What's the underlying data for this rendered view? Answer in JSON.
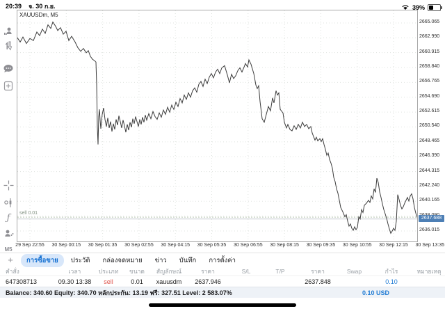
{
  "status_bar": {
    "time": "20:39",
    "date": "จ. 30 ก.ย.",
    "battery_percent": "39%"
  },
  "sidebar": {
    "timeframe_label": "M5",
    "icons": [
      "account-icon",
      "buy-sell-arrows-icon",
      "chat-icon",
      "new-order-icon",
      "crosshair-icon",
      "objects-icon",
      "indicators-icon",
      "trade-panel-icon"
    ]
  },
  "chart_data": {
    "type": "line",
    "title": "XAUUSDm, M5",
    "symbol_label": "XAUUSDm, M5",
    "line_color": "#3c3c3c",
    "grid_color": "#dfe3df",
    "y_range": [
      2634.56,
      2666.81
    ],
    "y_ticks": [
      "2665.065",
      "2662.990",
      "2660.915",
      "2658.840",
      "2656.765",
      "2654.690",
      "2652.615",
      "2650.540",
      "2648.465",
      "2646.390",
      "2644.315",
      "2642.240",
      "2640.165",
      "2638.090",
      "2636.015"
    ],
    "x_ticks": [
      "29 Sep 22:55",
      "30 Sep 00:15",
      "30 Sep 01:35",
      "30 Sep 02:55",
      "30 Sep 04:15",
      "30 Sep 05:35",
      "30 Sep 06:55",
      "30 Sep 08:15",
      "30 Sep 09:35",
      "30 Sep 10:55",
      "30 Sep 12:15",
      "30 Sep 13:35"
    ],
    "x_grid_start": 18,
    "x_grid_step": 52.3,
    "current_price": 2637.688,
    "current_price_label": "2637.688",
    "current_price_color": "#4d7fb5",
    "position_line": {
      "label": "sell 0.01",
      "price": 2637.946,
      "color": "#b9c6b4"
    },
    "points": [
      [
        0,
        2663.0
      ],
      [
        4,
        2662.4
      ],
      [
        8,
        2663.1
      ],
      [
        13,
        2662.2
      ],
      [
        18,
        2662.9
      ],
      [
        23,
        2662.6
      ],
      [
        28,
        2663.8
      ],
      [
        32,
        2663.3
      ],
      [
        36,
        2664.2
      ],
      [
        40,
        2663.6
      ],
      [
        44,
        2664.8
      ],
      [
        48,
        2664.3
      ],
      [
        51,
        2665.2
      ],
      [
        55,
        2664.6
      ],
      [
        58,
        2664.0
      ],
      [
        62,
        2664.4
      ],
      [
        66,
        2663.5
      ],
      [
        70,
        2663.9
      ],
      [
        74,
        2662.6
      ],
      [
        78,
        2663.2
      ],
      [
        83,
        2662.4
      ],
      [
        87,
        2661.6
      ],
      [
        91,
        2661.1
      ],
      [
        95,
        2661.5
      ],
      [
        99,
        2660.9
      ],
      [
        102,
        2661.2
      ],
      [
        105,
        2660.4
      ],
      [
        108,
        2660.0
      ],
      [
        111,
        2659.8
      ],
      [
        113,
        2659.6
      ],
      [
        114,
        2656.5
      ],
      [
        115,
        2650.5
      ],
      [
        116,
        2648.1
      ],
      [
        117,
        2652.0
      ],
      [
        118,
        2653.0
      ],
      [
        119,
        2651.5
      ],
      [
        120,
        2650.3
      ],
      [
        122,
        2652.3
      ],
      [
        124,
        2653.2
      ],
      [
        126,
        2651.6
      ],
      [
        128,
        2650.6
      ],
      [
        130,
        2651.8
      ],
      [
        132,
        2650.4
      ],
      [
        134,
        2651.3
      ],
      [
        136,
        2649.9
      ],
      [
        138,
        2651.0
      ],
      [
        140,
        2650.2
      ],
      [
        142,
        2651.6
      ],
      [
        144,
        2650.8
      ],
      [
        146,
        2652.1
      ],
      [
        148,
        2651.3
      ],
      [
        150,
        2650.4
      ],
      [
        152,
        2651.5
      ],
      [
        154,
        2650.7
      ],
      [
        156,
        2649.8
      ],
      [
        158,
        2650.9
      ],
      [
        160,
        2650.1
      ],
      [
        162,
        2651.2
      ],
      [
        164,
        2650.5
      ],
      [
        166,
        2651.7
      ],
      [
        168,
        2651.0
      ],
      [
        170,
        2652.0
      ],
      [
        172,
        2651.3
      ],
      [
        174,
        2650.6
      ],
      [
        176,
        2651.6
      ],
      [
        178,
        2650.9
      ],
      [
        180,
        2651.9
      ],
      [
        182,
        2651.2
      ],
      [
        184,
        2652.2
      ],
      [
        186,
        2651.5
      ],
      [
        189,
        2652.4
      ],
      [
        192,
        2651.7
      ],
      [
        195,
        2652.7
      ],
      [
        198,
        2652.0
      ],
      [
        201,
        2651.6
      ],
      [
        204,
        2652.5
      ],
      [
        207,
        2651.9
      ],
      [
        210,
        2652.9
      ],
      [
        213,
        2652.3
      ],
      [
        216,
        2653.3
      ],
      [
        219,
        2652.6
      ],
      [
        222,
        2653.6
      ],
      [
        225,
        2653.0
      ],
      [
        228,
        2654.0
      ],
      [
        231,
        2653.4
      ],
      [
        234,
        2654.5
      ],
      [
        237,
        2653.9
      ],
      [
        240,
        2655.0
      ],
      [
        243,
        2654.4
      ],
      [
        246,
        2655.3
      ],
      [
        249,
        2654.7
      ],
      [
        252,
        2655.6
      ],
      [
        255,
        2656.0
      ],
      [
        258,
        2655.4
      ],
      [
        261,
        2656.5
      ],
      [
        264,
        2656.9
      ],
      [
        267,
        2656.2
      ],
      [
        270,
        2657.2
      ],
      [
        273,
        2656.6
      ],
      [
        276,
        2657.5
      ],
      [
        279,
        2658.0
      ],
      [
        282,
        2657.4
      ],
      [
        285,
        2658.2
      ],
      [
        288,
        2658.6
      ],
      [
        291,
        2658.0
      ],
      [
        294,
        2658.8
      ],
      [
        298,
        2659.1
      ],
      [
        302,
        2657.8
      ],
      [
        305,
        2656.7
      ],
      [
        308,
        2657.9
      ],
      [
        311,
        2657.3
      ],
      [
        314,
        2657.7
      ],
      [
        317,
        2658.4
      ],
      [
        320,
        2658.8
      ],
      [
        323,
        2658.2
      ],
      [
        326,
        2658.9
      ],
      [
        328,
        2659.4
      ],
      [
        331,
        2658.9
      ],
      [
        333,
        2659.9
      ],
      [
        336,
        2659.3
      ],
      [
        340,
        2658.0
      ],
      [
        343,
        2656.4
      ],
      [
        345,
        2655.9
      ],
      [
        347,
        2656.3
      ],
      [
        349,
        2654.1
      ],
      [
        352,
        2651.7
      ],
      [
        355,
        2651.2
      ],
      [
        358,
        2652.3
      ],
      [
        361,
        2653.4
      ],
      [
        364,
        2652.8
      ],
      [
        367,
        2654.6
      ],
      [
        369,
        2653.9
      ],
      [
        372,
        2655.6
      ],
      [
        374,
        2655.0
      ],
      [
        376,
        2655.3
      ],
      [
        378,
        2653.0
      ],
      [
        382,
        2652.5
      ],
      [
        384,
        2651.2
      ],
      [
        387,
        2650.4
      ],
      [
        389,
        2650.9
      ],
      [
        392,
        2650.2
      ],
      [
        395,
        2650.0
      ],
      [
        398,
        2650.7
      ],
      [
        401,
        2650.2
      ],
      [
        404,
        2650.9
      ],
      [
        407,
        2650.4
      ],
      [
        410,
        2651.2
      ],
      [
        413,
        2650.6
      ],
      [
        416,
        2650.9
      ],
      [
        419,
        2650.3
      ],
      [
        422,
        2650.6
      ],
      [
        424,
        2649.7
      ],
      [
        426,
        2649.2
      ],
      [
        428,
        2648.7
      ],
      [
        430,
        2649.1
      ],
      [
        432,
        2648.6
      ],
      [
        435,
        2648.9
      ],
      [
        437,
        2648.5
      ],
      [
        439,
        2648.9
      ],
      [
        441,
        2648.1
      ],
      [
        443,
        2647.4
      ],
      [
        445,
        2646.6
      ],
      [
        447,
        2646.9
      ],
      [
        449,
        2646.0
      ],
      [
        451,
        2645.5
      ],
      [
        453,
        2644.8
      ],
      [
        455,
        2643.5
      ],
      [
        457,
        2642.9
      ],
      [
        459,
        2641.9
      ],
      [
        461,
        2641.3
      ],
      [
        463,
        2640.3
      ],
      [
        465,
        2639.3
      ],
      [
        468,
        2638.7
      ],
      [
        471,
        2638.0
      ],
      [
        473,
        2638.3
      ],
      [
        475,
        2637.4
      ],
      [
        477,
        2636.7
      ],
      [
        479,
        2637.0
      ],
      [
        481,
        2636.4
      ],
      [
        483,
        2636.1
      ],
      [
        485,
        2636.6
      ],
      [
        487,
        2636.2
      ],
      [
        489,
        2636.5
      ],
      [
        491,
        2638.0
      ],
      [
        493,
        2637.7
      ],
      [
        495,
        2639.0
      ],
      [
        497,
        2638.6
      ],
      [
        499,
        2639.6
      ],
      [
        502,
        2639.9
      ],
      [
        505,
        2640.3
      ],
      [
        507,
        2640.0
      ],
      [
        509,
        2640.9
      ],
      [
        511,
        2640.5
      ],
      [
        513,
        2641.9
      ],
      [
        515,
        2641.4
      ],
      [
        517,
        2643.4
      ],
      [
        519,
        2642.8
      ],
      [
        521,
        2641.5
      ],
      [
        523,
        2640.7
      ],
      [
        525,
        2639.8
      ],
      [
        527,
        2639.0
      ],
      [
        529,
        2638.4
      ],
      [
        531,
        2637.8
      ],
      [
        533,
        2637.0
      ],
      [
        535,
        2636.3
      ],
      [
        537,
        2635.7
      ],
      [
        539,
        2636.0
      ],
      [
        541,
        2636.4
      ],
      [
        543,
        2636.1
      ],
      [
        545,
        2637.4
      ],
      [
        547,
        2641.1
      ],
      [
        549,
        2640.4
      ],
      [
        551,
        2639.6
      ],
      [
        553,
        2639.1
      ],
      [
        555,
        2639.4
      ],
      [
        557,
        2639.9
      ],
      [
        559,
        2640.3
      ],
      [
        561,
        2640.7
      ],
      [
        563,
        2640.2
      ],
      [
        565,
        2640.9
      ],
      [
        567,
        2641.2
      ],
      [
        569,
        2640.5
      ],
      [
        571,
        2639.3
      ],
      [
        573,
        2638.5
      ],
      [
        576,
        2637.7
      ]
    ]
  },
  "bottom_panel": {
    "add_tab_label": "+",
    "tabs": [
      {
        "label": "การซื้อขาย",
        "selected": true
      },
      {
        "label": "ประวัติ",
        "selected": false
      },
      {
        "label": "กล่องจดหมาย",
        "selected": false
      },
      {
        "label": "ข่าว",
        "selected": false
      },
      {
        "label": "บันทึก",
        "selected": false
      },
      {
        "label": "การตั้งค่า",
        "selected": false
      }
    ],
    "columns": [
      "คำสั่ง",
      "เวลา",
      "ประเภท",
      "ขนาด",
      "สัญลักษณ์",
      "ราคา",
      "S/L",
      "T/P",
      "ราคา",
      "Swap",
      "กำไร",
      "หมายเหตุ"
    ],
    "rows": [
      [
        "647308713",
        "09.30 13:38",
        "sell",
        "0.01",
        "xauusdm",
        "2637.946",
        "",
        "",
        "2637.848",
        "",
        "0.10",
        ""
      ]
    ],
    "summary_text": "Balance: 340.60 Equity: 340.70 หลักประกัน: 13.19 ฟรี: 327.51 Level: 2 583.07%",
    "summary_profit": "0.10 USD"
  }
}
